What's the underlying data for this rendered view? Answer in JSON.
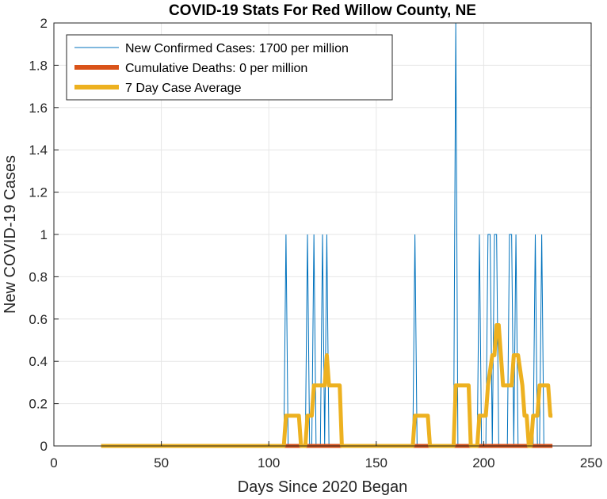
{
  "chart_data": {
    "type": "line",
    "title": "COVID-19 Stats For Red Willow County, NE",
    "xlabel": "Days Since 2020 Began",
    "ylabel": "New COVID-19 Cases",
    "xlim": [
      0,
      250
    ],
    "ylim": [
      0,
      2
    ],
    "xticks": [
      0,
      50,
      100,
      150,
      200,
      250
    ],
    "yticks": [
      0,
      0.2,
      0.4,
      0.6,
      0.8,
      1,
      1.2,
      1.4,
      1.6,
      1.8,
      2
    ],
    "xtick_labels": [
      "0",
      "50",
      "100",
      "150",
      "200",
      "250"
    ],
    "ytick_labels": [
      "0",
      "0.2",
      "0.4",
      "0.6",
      "0.8",
      "1",
      "1.2",
      "1.4",
      "1.6",
      "1.8",
      "2"
    ],
    "grid": true,
    "legend_position": "top-left",
    "series": [
      {
        "name": "New Confirmed Cases: 1700 per million",
        "color": "#0072BD",
        "style": "thin-line",
        "spikes": [
          {
            "x": 108,
            "y": 1
          },
          {
            "x": 118,
            "y": 1
          },
          {
            "x": 121,
            "y": 1
          },
          {
            "x": 125,
            "y": 1
          },
          {
            "x": 127,
            "y": 1
          },
          {
            "x": 168,
            "y": 1
          },
          {
            "x": 187,
            "y": 2
          },
          {
            "x": 198,
            "y": 1
          },
          {
            "x": 202,
            "y": 1
          },
          {
            "x": 203,
            "y": 1
          },
          {
            "x": 205,
            "y": 1
          },
          {
            "x": 206,
            "y": 1
          },
          {
            "x": 212,
            "y": 1
          },
          {
            "x": 213,
            "y": 1
          },
          {
            "x": 215,
            "y": 1
          },
          {
            "x": 224,
            "y": 1
          },
          {
            "x": 227,
            "y": 1
          }
        ],
        "x_range": [
          22,
          232
        ]
      },
      {
        "name": "Cumulative Deaths: 0 per million",
        "color": "#D95319",
        "style": "thick-line",
        "x": [
          22,
          232
        ],
        "y": [
          0,
          0
        ]
      },
      {
        "name": "7 Day Case Average",
        "color": "#EDB120",
        "style": "thick-line",
        "x": [
          22,
          107,
          108,
          114,
          115,
          117,
          118,
          120,
          121,
          126,
          127,
          128,
          129,
          133,
          134,
          167,
          168,
          174,
          175,
          186,
          187,
          193,
          194,
          197,
          198,
          201,
          202,
          204,
          205,
          206,
          207,
          208,
          209,
          210,
          211,
          213,
          214,
          215,
          216,
          218,
          219,
          220,
          221,
          222,
          223,
          225,
          226,
          227,
          228,
          230,
          231,
          232
        ],
        "y": [
          0,
          0,
          0.143,
          0.143,
          0,
          0,
          0.143,
          0.143,
          0.286,
          0.286,
          0.429,
          0.286,
          0.286,
          0.286,
          0,
          0,
          0.143,
          0.143,
          0,
          0,
          0.286,
          0.286,
          0,
          0,
          0.143,
          0.143,
          0.286,
          0.429,
          0.429,
          0.571,
          0.571,
          0.429,
          0.286,
          0.286,
          0.286,
          0.286,
          0.429,
          0.429,
          0.429,
          0.286,
          0.143,
          0.143,
          0,
          0,
          0.143,
          0.143,
          0.286,
          0.286,
          0.286,
          0.286,
          0.143,
          0.143
        ]
      }
    ]
  }
}
